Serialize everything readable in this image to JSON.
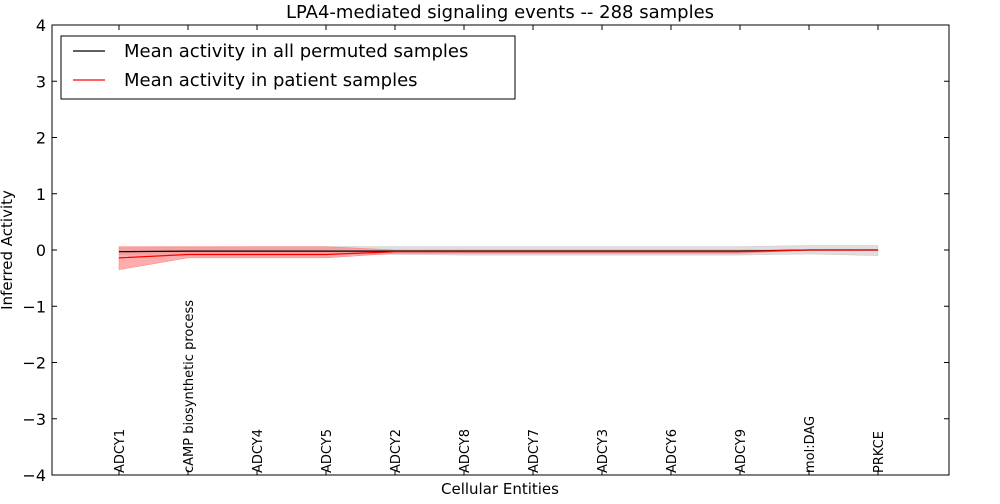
{
  "chart_data": {
    "type": "line",
    "title": "LPA4-mediated signaling events -- 288 samples",
    "xlabel": "Cellular Entities",
    "ylabel": "Inferred Activity",
    "ylim": [
      -4,
      4
    ],
    "yticks": [
      4,
      3,
      2,
      1,
      0,
      -1,
      -2,
      -3,
      -4
    ],
    "ytick_labels": [
      "4",
      "3",
      "2",
      "1",
      "0",
      "−1",
      "−2",
      "−3",
      "−4"
    ],
    "grid": false,
    "legend_position": "top-left",
    "categories": [
      "ADCY1",
      "cAMP biosynthetic process",
      "ADCY4",
      "ADCY5",
      "ADCY2",
      "ADCY8",
      "ADCY7",
      "ADCY3",
      "ADCY6",
      "ADCY9",
      "mol:DAG",
      "PRKCE"
    ],
    "series": [
      {
        "name": "Mean activity in all permuted samples",
        "color": "#000000",
        "band_color": "#c8c8c8",
        "values": [
          -0.03,
          -0.02,
          -0.02,
          -0.02,
          -0.02,
          -0.02,
          -0.02,
          -0.02,
          -0.02,
          -0.02,
          0.0,
          0.0
        ],
        "lower": [
          -0.08,
          -0.07,
          -0.07,
          -0.07,
          -0.08,
          -0.09,
          -0.09,
          -0.09,
          -0.09,
          -0.09,
          -0.07,
          -0.1
        ],
        "upper": [
          0.04,
          0.05,
          0.06,
          0.06,
          0.06,
          0.06,
          0.06,
          0.06,
          0.06,
          0.06,
          0.08,
          0.08
        ]
      },
      {
        "name": "Mean activity in patient samples",
        "color": "#ff0000",
        "band_color": "#ff8080",
        "values": [
          -0.14,
          -0.08,
          -0.08,
          -0.08,
          -0.03,
          -0.03,
          -0.03,
          -0.03,
          -0.03,
          -0.03,
          0.0,
          0.0
        ],
        "lower": [
          -0.35,
          -0.14,
          -0.14,
          -0.14,
          -0.06,
          -0.06,
          -0.06,
          -0.06,
          -0.06,
          -0.06,
          0.0,
          0.0
        ],
        "upper": [
          0.06,
          0.06,
          0.06,
          0.06,
          0.0,
          0.0,
          0.0,
          0.0,
          0.0,
          0.0,
          0.0,
          0.0
        ]
      }
    ]
  }
}
